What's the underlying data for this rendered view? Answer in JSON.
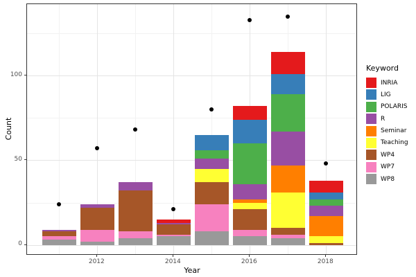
{
  "chart_data": {
    "type": "bar",
    "subtype": "stacked-bars-with-points",
    "title": "",
    "xlabel": "Year",
    "ylabel": "Count",
    "legend_title": "Keyword",
    "legend_position": "right",
    "grid": true,
    "categories": [
      2011,
      2012,
      2013,
      2014,
      2015,
      2016,
      2017,
      2018
    ],
    "x_tick_labels": [
      "2012",
      "2014",
      "2016",
      "2018"
    ],
    "x_major_ticks": [
      2012,
      2014,
      2016,
      2018
    ],
    "x_minor_ticks": [
      2011,
      2013,
      2015,
      2017
    ],
    "y_tick_labels": [
      "0",
      "50",
      "100"
    ],
    "y_major_ticks": [
      0,
      50,
      100
    ],
    "y_minor_ticks": [
      25,
      75,
      125
    ],
    "ylim": [
      -6.4,
      142.5
    ],
    "stack_order_bottom_to_top": [
      "WP8",
      "WP7",
      "WP4",
      "Teaching",
      "Seminar",
      "R",
      "POLARIS",
      "LIG",
      "INRIA"
    ],
    "series": [
      {
        "name": "INRIA",
        "color": "#E41A1C",
        "values": [
          0,
          0,
          0,
          2,
          0,
          8,
          13,
          7
        ]
      },
      {
        "name": "LIG",
        "color": "#377EB8",
        "values": [
          0,
          0,
          0,
          0,
          9,
          14,
          12,
          4
        ]
      },
      {
        "name": "POLARIS",
        "color": "#4DAF4A",
        "values": [
          0,
          0,
          0,
          0,
          5,
          24,
          22,
          4
        ]
      },
      {
        "name": "R",
        "color": "#984EA3",
        "values": [
          1,
          2,
          5,
          1,
          6,
          9,
          20,
          6
        ]
      },
      {
        "name": "Seminar",
        "color": "#FF7F00",
        "values": [
          0,
          0,
          0,
          0,
          0,
          2,
          16,
          12
        ]
      },
      {
        "name": "Teaching",
        "color": "#FFFF33",
        "values": [
          0,
          0,
          0,
          0,
          8,
          4,
          21,
          4
        ]
      },
      {
        "name": "WP4",
        "color": "#A65628",
        "values": [
          3,
          13,
          24,
          6,
          13,
          12,
          4,
          1
        ]
      },
      {
        "name": "WP7",
        "color": "#F781BF",
        "values": [
          2,
          7,
          4,
          1,
          16,
          4,
          2,
          0
        ]
      },
      {
        "name": "WP8",
        "color": "#999999",
        "values": [
          3,
          2,
          4,
          5,
          8,
          5,
          4,
          0
        ]
      }
    ],
    "bar_totals": [
      9,
      24,
      37,
      15,
      65,
      82,
      114,
      38
    ],
    "points_series": {
      "name": "points",
      "color": "#000000",
      "values": [
        24,
        57,
        68,
        21,
        80,
        133,
        135,
        48
      ]
    }
  }
}
